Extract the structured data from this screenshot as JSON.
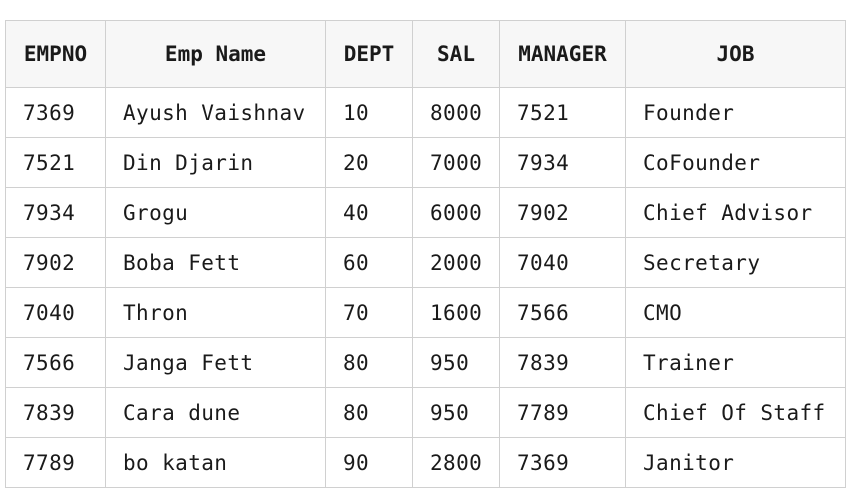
{
  "table": {
    "headers": [
      "EMPNO",
      "Emp Name",
      "DEPT",
      "SAL",
      "MANAGER",
      "JOB"
    ],
    "rows": [
      [
        "7369",
        "Ayush Vaishnav",
        "10",
        "8000",
        "7521",
        "Founder"
      ],
      [
        "7521",
        "Din Djarin",
        "20",
        "7000",
        "7934",
        "CoFounder"
      ],
      [
        "7934",
        "Grogu",
        "40",
        "6000",
        "7902",
        "Chief Advisor"
      ],
      [
        "7902",
        "Boba Fett",
        "60",
        "2000",
        "7040",
        "Secretary"
      ],
      [
        "7040",
        "Thron",
        "70",
        "1600",
        "7566",
        "CMO"
      ],
      [
        "7566",
        "Janga Fett",
        "80",
        "950",
        "7839",
        "Trainer"
      ],
      [
        "7839",
        "Cara dune",
        "80",
        "950",
        "7789",
        "Chief Of Staff"
      ],
      [
        "7789",
        "bo katan",
        "90",
        "2800",
        "7369",
        "Janitor"
      ]
    ]
  }
}
